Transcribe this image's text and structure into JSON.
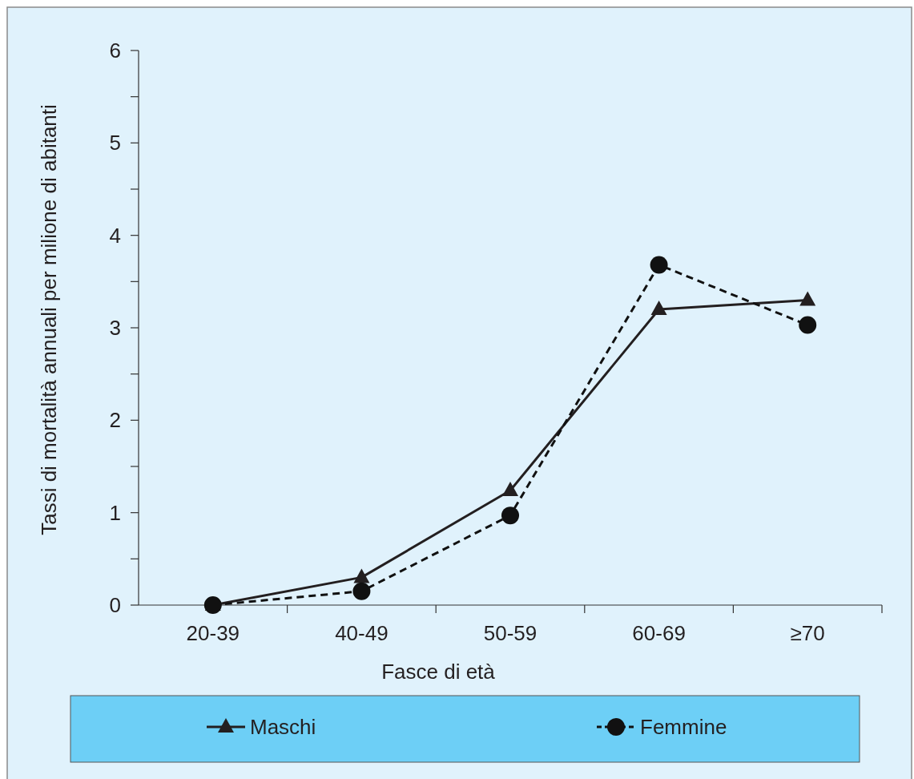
{
  "chart_data": {
    "type": "line",
    "xlabel": "Fasce di età",
    "ylabel": "Tassi di mortalità annuali per milione di abitanti",
    "categories": [
      "20-39",
      "40-49",
      "50-59",
      "60-69",
      "≥70"
    ],
    "series": [
      {
        "name": "Maschi",
        "color": "#231f20",
        "values": [
          0,
          0.3,
          1.24,
          3.2,
          3.3
        ],
        "marker": "triangle",
        "line_style": "solid"
      },
      {
        "name": "Femmine",
        "color": "#111111",
        "values": [
          0,
          0.15,
          0.97,
          3.68,
          3.03
        ],
        "marker": "circle",
        "line_style": "dashed"
      }
    ],
    "ylim": [
      0,
      6
    ],
    "yticks": [
      0,
      {
        "value": 0.5,
        "label": null
      },
      1,
      {
        "value": 1.5,
        "label": null
      },
      2,
      {
        "value": 2.5,
        "label": null
      },
      3,
      {
        "value": 3.5,
        "label": null
      },
      4,
      {
        "value": 4.5,
        "label": null
      },
      5,
      {
        "value": 5.5,
        "label": null
      },
      6
    ],
    "grid": false,
    "legend": "bottom"
  }
}
